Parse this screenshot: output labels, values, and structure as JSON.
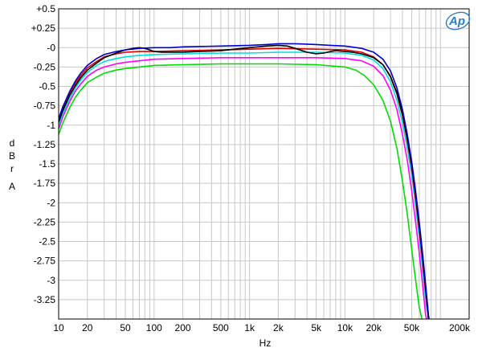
{
  "chart_data": {
    "type": "line",
    "title": "",
    "xlabel": "Hz",
    "ylabel_lines": [
      "d",
      "B",
      "r",
      "",
      "A"
    ],
    "x_scale": "log",
    "xlim": [
      10,
      200000
    ],
    "ylim": [
      -3.5,
      0.5
    ],
    "grid": true,
    "logo": "Ap",
    "x_ticks": [
      {
        "value": 10,
        "label": "10"
      },
      {
        "value": 20,
        "label": "20"
      },
      {
        "value": 50,
        "label": "50"
      },
      {
        "value": 100,
        "label": "100"
      },
      {
        "value": 200,
        "label": "200"
      },
      {
        "value": 500,
        "label": "500"
      },
      {
        "value": 1000,
        "label": "1k"
      },
      {
        "value": 2000,
        "label": "2k"
      },
      {
        "value": 5000,
        "label": "5k"
      },
      {
        "value": 10000,
        "label": "10k"
      },
      {
        "value": 20000,
        "label": "20k"
      },
      {
        "value": 50000,
        "label": "50k"
      },
      {
        "value": 200000,
        "label": "200k"
      }
    ],
    "y_ticks": [
      {
        "value": 0.5,
        "label": "+0.5"
      },
      {
        "value": 0.25,
        "label": "+0.25"
      },
      {
        "value": 0,
        "label": "-0"
      },
      {
        "value": -0.25,
        "label": "-0.25"
      },
      {
        "value": -0.5,
        "label": "-0.5"
      },
      {
        "value": -0.75,
        "label": "-0.75"
      },
      {
        "value": -1,
        "label": "-1"
      },
      {
        "value": -1.25,
        "label": "-1.25"
      },
      {
        "value": -1.5,
        "label": "-1.5"
      },
      {
        "value": -1.75,
        "label": "-1.75"
      },
      {
        "value": -2,
        "label": "-2"
      },
      {
        "value": -2.25,
        "label": "-2.25"
      },
      {
        "value": -2.5,
        "label": "-2.5"
      },
      {
        "value": -2.75,
        "label": "-2.75"
      },
      {
        "value": -3,
        "label": "-3"
      },
      {
        "value": -3.25,
        "label": "-3.25"
      }
    ],
    "series": [
      {
        "color": "#00dd00",
        "points": [
          [
            10,
            -1.12
          ],
          [
            11,
            -0.98
          ],
          [
            13,
            -0.78
          ],
          [
            15,
            -0.64
          ],
          [
            17,
            -0.55
          ],
          [
            20,
            -0.45
          ],
          [
            25,
            -0.38
          ],
          [
            30,
            -0.33
          ],
          [
            40,
            -0.29
          ],
          [
            50,
            -0.27
          ],
          [
            70,
            -0.25
          ],
          [
            100,
            -0.23
          ],
          [
            200,
            -0.22
          ],
          [
            500,
            -0.21
          ],
          [
            1000,
            -0.21
          ],
          [
            2000,
            -0.21
          ],
          [
            5000,
            -0.22
          ],
          [
            10000,
            -0.25
          ],
          [
            13000,
            -0.29
          ],
          [
            16000,
            -0.36
          ],
          [
            20000,
            -0.48
          ],
          [
            25000,
            -0.68
          ],
          [
            30000,
            -0.95
          ],
          [
            35000,
            -1.3
          ],
          [
            40000,
            -1.72
          ],
          [
            45000,
            -2.15
          ],
          [
            50000,
            -2.6
          ],
          [
            55000,
            -3.0
          ],
          [
            60000,
            -3.35
          ],
          [
            64000,
            -3.5
          ]
        ]
      },
      {
        "color": "#ff00ff",
        "points": [
          [
            10,
            -1.05
          ],
          [
            11,
            -0.9
          ],
          [
            13,
            -0.7
          ],
          [
            15,
            -0.56
          ],
          [
            17,
            -0.47
          ],
          [
            20,
            -0.37
          ],
          [
            25,
            -0.29
          ],
          [
            30,
            -0.25
          ],
          [
            40,
            -0.21
          ],
          [
            50,
            -0.19
          ],
          [
            70,
            -0.17
          ],
          [
            100,
            -0.15
          ],
          [
            200,
            -0.14
          ],
          [
            500,
            -0.13
          ],
          [
            1000,
            -0.13
          ],
          [
            2000,
            -0.13
          ],
          [
            5000,
            -0.13
          ],
          [
            10000,
            -0.14
          ],
          [
            15000,
            -0.17
          ],
          [
            20000,
            -0.24
          ],
          [
            25000,
            -0.36
          ],
          [
            30000,
            -0.55
          ],
          [
            35000,
            -0.8
          ],
          [
            40000,
            -1.12
          ],
          [
            45000,
            -1.45
          ],
          [
            50000,
            -1.85
          ],
          [
            55000,
            -2.25
          ],
          [
            60000,
            -2.65
          ],
          [
            65000,
            -3.05
          ],
          [
            70000,
            -3.45
          ],
          [
            72000,
            -3.5
          ]
        ]
      },
      {
        "color": "#00dddd",
        "points": [
          [
            10,
            -1.0
          ],
          [
            11,
            -0.86
          ],
          [
            13,
            -0.66
          ],
          [
            15,
            -0.52
          ],
          [
            17,
            -0.42
          ],
          [
            20,
            -0.32
          ],
          [
            25,
            -0.23
          ],
          [
            30,
            -0.18
          ],
          [
            40,
            -0.14
          ],
          [
            50,
            -0.12
          ],
          [
            70,
            -0.1
          ],
          [
            100,
            -0.09
          ],
          [
            200,
            -0.08
          ],
          [
            500,
            -0.07
          ],
          [
            1000,
            -0.07
          ],
          [
            2000,
            -0.06
          ],
          [
            5000,
            -0.06
          ],
          [
            10000,
            -0.07
          ],
          [
            15000,
            -0.1
          ],
          [
            20000,
            -0.16
          ],
          [
            25000,
            -0.27
          ],
          [
            30000,
            -0.44
          ],
          [
            35000,
            -0.68
          ],
          [
            40000,
            -0.97
          ],
          [
            45000,
            -1.3
          ],
          [
            50000,
            -1.65
          ],
          [
            55000,
            -2.05
          ],
          [
            60000,
            -2.45
          ],
          [
            65000,
            -2.85
          ],
          [
            70000,
            -3.25
          ],
          [
            75000,
            -3.5
          ]
        ]
      },
      {
        "color": "#dd0000",
        "points": [
          [
            10,
            -0.95
          ],
          [
            11,
            -0.8
          ],
          [
            13,
            -0.6
          ],
          [
            15,
            -0.46
          ],
          [
            17,
            -0.36
          ],
          [
            20,
            -0.26
          ],
          [
            25,
            -0.18
          ],
          [
            30,
            -0.12
          ],
          [
            40,
            -0.08
          ],
          [
            50,
            -0.06
          ],
          [
            70,
            -0.05
          ],
          [
            100,
            -0.05
          ],
          [
            200,
            -0.04
          ],
          [
            500,
            -0.03
          ],
          [
            1000,
            -0.02
          ],
          [
            2000,
            -0.01
          ],
          [
            5000,
            -0.02
          ],
          [
            10000,
            -0.03
          ],
          [
            15000,
            -0.06
          ],
          [
            20000,
            -0.12
          ],
          [
            25000,
            -0.22
          ],
          [
            30000,
            -0.38
          ],
          [
            35000,
            -0.6
          ],
          [
            40000,
            -0.88
          ],
          [
            45000,
            -1.2
          ],
          [
            50000,
            -1.55
          ],
          [
            55000,
            -1.95
          ],
          [
            60000,
            -2.35
          ],
          [
            65000,
            -2.75
          ],
          [
            70000,
            -3.15
          ],
          [
            75000,
            -3.5
          ]
        ]
      },
      {
        "color": "#000000",
        "points": [
          [
            10,
            -0.96
          ],
          [
            11,
            -0.82
          ],
          [
            13,
            -0.62
          ],
          [
            15,
            -0.49
          ],
          [
            17,
            -0.39
          ],
          [
            20,
            -0.29
          ],
          [
            25,
            -0.2
          ],
          [
            30,
            -0.13
          ],
          [
            40,
            -0.07
          ],
          [
            50,
            -0.03
          ],
          [
            60,
            -0.01
          ],
          [
            70,
            0.0
          ],
          [
            80,
            -0.01
          ],
          [
            90,
            -0.03
          ],
          [
            100,
            -0.05
          ],
          [
            120,
            -0.06
          ],
          [
            150,
            -0.06
          ],
          [
            200,
            -0.06
          ],
          [
            300,
            -0.05
          ],
          [
            500,
            -0.04
          ],
          [
            700,
            -0.02
          ],
          [
            1000,
            0.0
          ],
          [
            1500,
            0.02
          ],
          [
            2000,
            0.03
          ],
          [
            2500,
            0.02
          ],
          [
            3000,
            -0.01
          ],
          [
            4000,
            -0.06
          ],
          [
            5000,
            -0.08
          ],
          [
            6000,
            -0.07
          ],
          [
            7000,
            -0.05
          ],
          [
            8000,
            -0.04
          ],
          [
            10000,
            -0.05
          ],
          [
            12000,
            -0.06
          ],
          [
            15000,
            -0.08
          ],
          [
            20000,
            -0.13
          ],
          [
            25000,
            -0.22
          ],
          [
            30000,
            -0.37
          ],
          [
            35000,
            -0.58
          ],
          [
            40000,
            -0.85
          ],
          [
            45000,
            -1.17
          ],
          [
            50000,
            -1.52
          ],
          [
            55000,
            -1.9
          ],
          [
            60000,
            -2.3
          ],
          [
            65000,
            -2.7
          ],
          [
            70000,
            -3.1
          ],
          [
            75000,
            -3.5
          ]
        ]
      },
      {
        "color": "#0000cc",
        "points": [
          [
            10,
            -0.92
          ],
          [
            11,
            -0.77
          ],
          [
            13,
            -0.57
          ],
          [
            15,
            -0.43
          ],
          [
            17,
            -0.33
          ],
          [
            20,
            -0.23
          ],
          [
            25,
            -0.14
          ],
          [
            30,
            -0.09
          ],
          [
            40,
            -0.05
          ],
          [
            50,
            -0.03
          ],
          [
            70,
            -0.01
          ],
          [
            100,
            0.0
          ],
          [
            150,
            0.0
          ],
          [
            200,
            0.01
          ],
          [
            500,
            0.02
          ],
          [
            1000,
            0.03
          ],
          [
            1500,
            0.04
          ],
          [
            2000,
            0.05
          ],
          [
            3000,
            0.05
          ],
          [
            5000,
            0.04
          ],
          [
            7000,
            0.03
          ],
          [
            10000,
            0.02
          ],
          [
            15000,
            -0.01
          ],
          [
            20000,
            -0.06
          ],
          [
            25000,
            -0.15
          ],
          [
            30000,
            -0.3
          ],
          [
            35000,
            -0.52
          ],
          [
            40000,
            -0.8
          ],
          [
            45000,
            -1.12
          ],
          [
            50000,
            -1.47
          ],
          [
            55000,
            -1.85
          ],
          [
            60000,
            -2.25
          ],
          [
            65000,
            -2.65
          ],
          [
            70000,
            -3.05
          ],
          [
            75000,
            -3.45
          ],
          [
            76000,
            -3.5
          ]
        ]
      }
    ]
  }
}
